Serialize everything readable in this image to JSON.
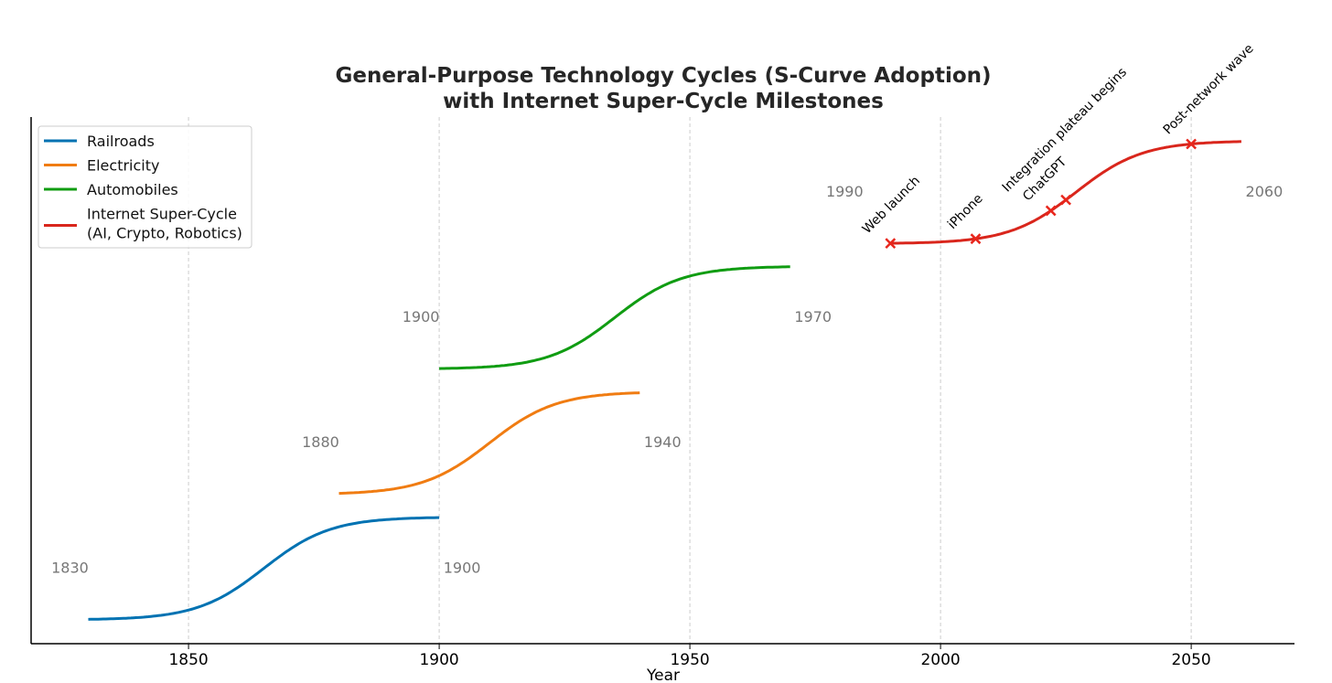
{
  "chart_data": {
    "type": "line",
    "title": [
      "General-Purpose Technology Cycles (S-Curve Adoption)",
      "with Internet Super-Cycle Milestones"
    ],
    "xlabel": "Year",
    "ylabel": "",
    "xlim": [
      1818.6,
      2070.6
    ],
    "ylim": [
      -0.19,
      4.01
    ],
    "xticks": [
      1850,
      1900,
      1950,
      2000,
      2050
    ],
    "grid": "vertical dashed",
    "legend": "top-left",
    "series": [
      {
        "name": "Railroads",
        "color": "#0072b2",
        "start": 1830,
        "end": 1900,
        "midpoint": 1865,
        "rate": 0.15,
        "offset": 0,
        "amplitude": 0.82,
        "start_label": "1830",
        "end_label": "1900",
        "label_y": 0.42
      },
      {
        "name": "Electricity",
        "color": "#f07c12",
        "start": 1880,
        "end": 1940,
        "midpoint": 1910,
        "rate": 0.15,
        "offset": 1,
        "amplitude": 0.82,
        "start_label": "1880",
        "end_label": "1940",
        "label_y": 1.42
      },
      {
        "name": "Automobiles",
        "color": "#109c12",
        "start": 1900,
        "end": 1970,
        "midpoint": 1935,
        "rate": 0.15,
        "offset": 2,
        "amplitude": 0.82,
        "start_label": "1900",
        "end_label": "1970",
        "label_y": 2.42
      },
      {
        "name": "Internet Super-Cycle\n(AI, Crypto, Robotics)",
        "legend_lines": [
          "Internet Super-Cycle",
          "(AI, Crypto, Robotics)"
        ],
        "color": "#d9261c",
        "start": 1990,
        "end": 2060,
        "midpoint": 2027,
        "rate": 0.15,
        "offset": 3,
        "amplitude": 0.82,
        "start_label": "1990",
        "end_label": "2060",
        "label_y": 3.42
      }
    ],
    "milestones": [
      {
        "year": 1990,
        "label": "Web launch"
      },
      {
        "year": 2007,
        "label": "iPhone"
      },
      {
        "year": 2022,
        "label": "ChatGPT"
      },
      {
        "year": 2025,
        "label": "Integration plateau begins"
      },
      {
        "year": 2050,
        "label": "Post-network wave"
      }
    ]
  }
}
